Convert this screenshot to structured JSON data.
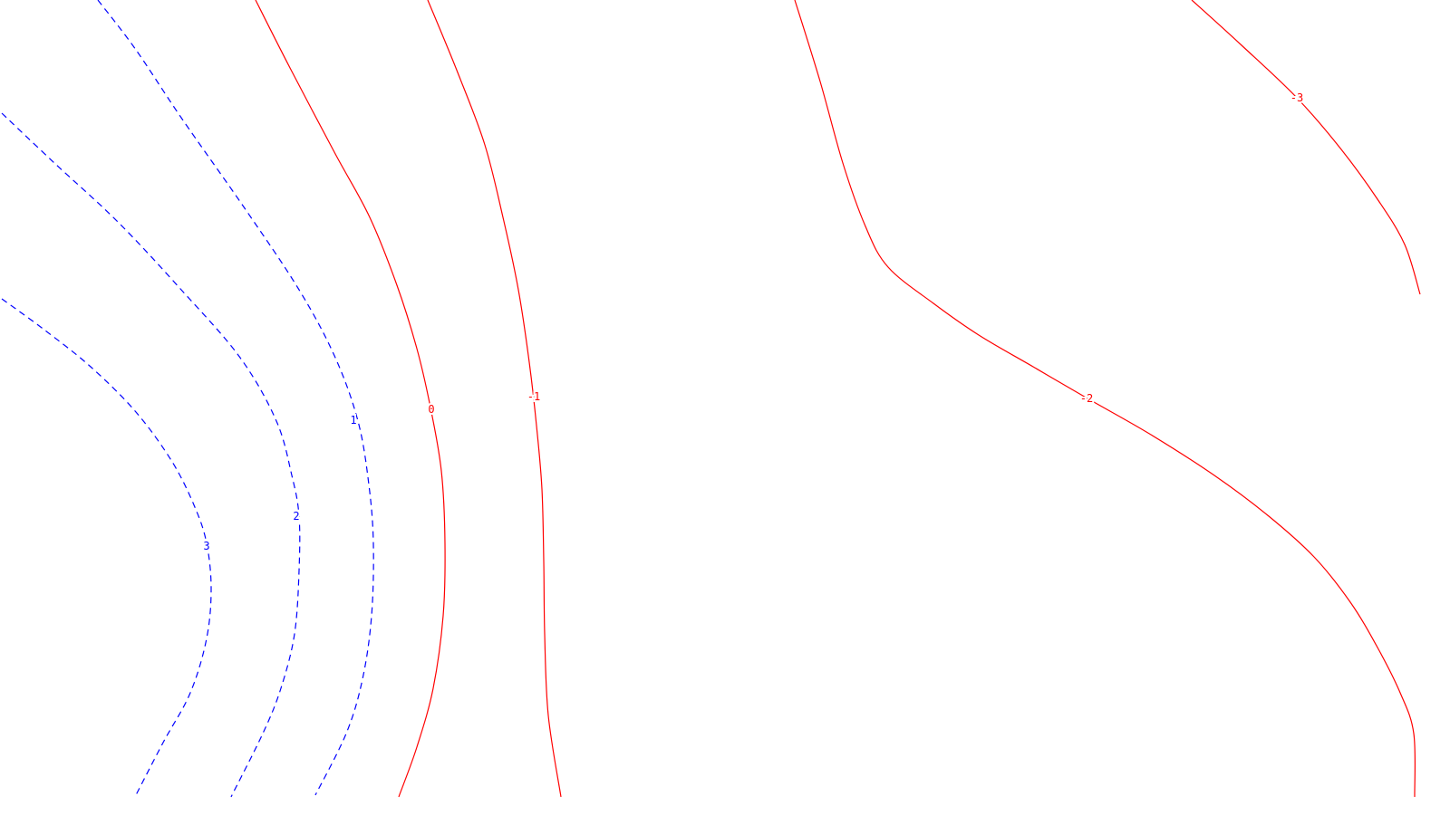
{
  "chart_data": {
    "type": "contour",
    "title": "",
    "xlabel": "",
    "ylabel": "",
    "grid": false,
    "legend": "none",
    "colors": {
      "positive": "#0000ff",
      "nonpositive": "#ff0000",
      "background": "#ffffff"
    },
    "contours": [
      {
        "level": 3,
        "label": "3",
        "style": "dashed",
        "color": "#0000ff"
      },
      {
        "level": 2,
        "label": "2",
        "style": "dashed",
        "color": "#0000ff"
      },
      {
        "level": 1,
        "label": "1",
        "style": "dashed",
        "color": "#0000ff"
      },
      {
        "level": 0,
        "label": "0",
        "style": "solid",
        "color": "#ff0000"
      },
      {
        "level": -1,
        "label": "-1",
        "style": "solid",
        "color": "#ff0000"
      },
      {
        "level": -2,
        "label": "-2",
        "style": "solid",
        "color": "#ff0000"
      },
      {
        "level": -3,
        "label": "-3",
        "style": "solid",
        "color": "#ff0000"
      }
    ]
  }
}
